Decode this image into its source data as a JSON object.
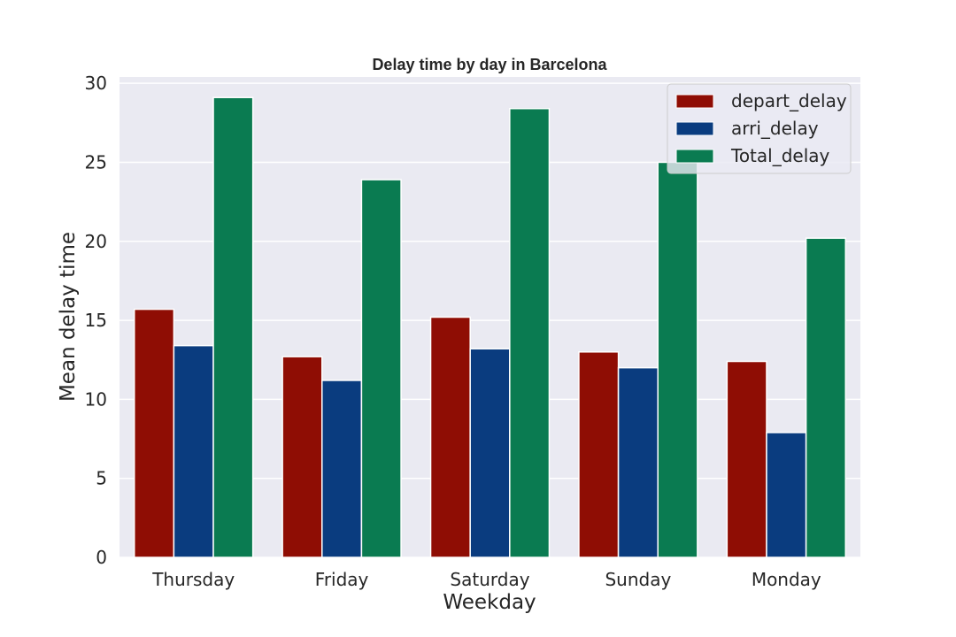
{
  "chart_data": {
    "type": "bar",
    "title": "Delay time by day in Barcelona",
    "xlabel": "Weekday",
    "ylabel": "Mean delay time",
    "categories": [
      "Thursday",
      "Friday",
      "Saturday",
      "Sunday",
      "Monday"
    ],
    "series": [
      {
        "name": "depart_delay",
        "color": "#8f0d04",
        "values": [
          15.7,
          12.7,
          15.2,
          13.0,
          12.4
        ]
      },
      {
        "name": "arri_delay",
        "color": "#0a3c7f",
        "values": [
          13.4,
          11.2,
          13.2,
          12.0,
          7.9
        ]
      },
      {
        "name": "Total_delay",
        "color": "#0a7b51",
        "values": [
          29.1,
          23.9,
          28.4,
          25.0,
          20.2
        ]
      }
    ],
    "ylim": [
      0,
      30.4
    ],
    "yticks": [
      0,
      5,
      10,
      15,
      20,
      25,
      30
    ],
    "grid": true,
    "legend_position": "top-right",
    "background_color": "#eaeaf2",
    "grid_color": "#ffffff"
  }
}
